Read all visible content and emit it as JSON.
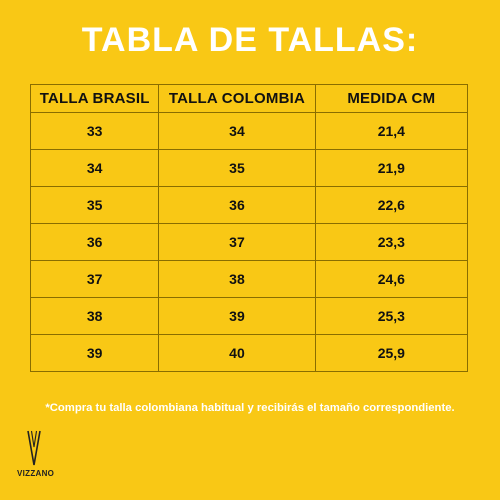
{
  "title": "TABLA DE TALLAS:",
  "table": {
    "headers": [
      "TALLA BRASIL",
      "TALLA COLOMBIA",
      "MEDIDA CM"
    ],
    "rows": [
      [
        "33",
        "34",
        "21,4"
      ],
      [
        "34",
        "35",
        "21,9"
      ],
      [
        "35",
        "36",
        "22,6"
      ],
      [
        "36",
        "37",
        "23,3"
      ],
      [
        "37",
        "38",
        "24,6"
      ],
      [
        "38",
        "39",
        "25,3"
      ],
      [
        "39",
        "40",
        "25,9"
      ]
    ]
  },
  "footnote": "*Compra tu talla colombiana habitual y recibirás el tamaño correspondiente.",
  "brand": {
    "name": "VIZZANO",
    "icon": "vizzano-v-logo-icon"
  },
  "colors": {
    "background": "#f9c815",
    "title_text": "#ffffff",
    "table_text": "#111111",
    "table_border": "#8a6d00"
  }
}
